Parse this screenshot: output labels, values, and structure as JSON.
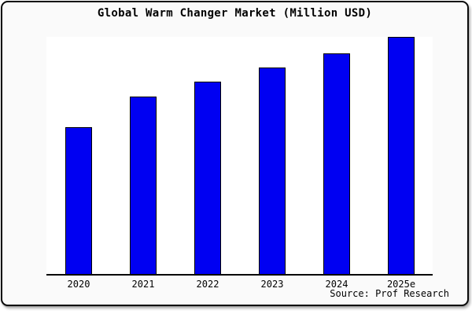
{
  "title": "Global Warm Changer Market (Million USD)",
  "source_label": "Source: Prof Research",
  "colors": {
    "bar_fill": "#0000f2",
    "bar_border": "#000000",
    "plot_background": "#ffffff",
    "canvas_background": "#fafafa",
    "axis_line": "#000000",
    "frame_border": "#0a0a0a"
  },
  "chart_data": {
    "type": "bar",
    "title": "Global Warm Changer Market (Million USD)",
    "categories": [
      "2020",
      "2021",
      "2022",
      "2023",
      "2024",
      "2025e"
    ],
    "values": [
      62,
      75,
      81,
      87,
      93,
      100
    ],
    "values_estimation": "relative bar heights as % of tallest bar (2025e=100); no y-axis scale is shown in the chart",
    "xlabel": "",
    "ylabel": "",
    "ylim": [
      0,
      100
    ],
    "y_axis_visible": false,
    "x_axis_visible": true,
    "grid": false,
    "legend": false,
    "bar_color": "#0000f2",
    "source": "Source: Prof Research"
  }
}
